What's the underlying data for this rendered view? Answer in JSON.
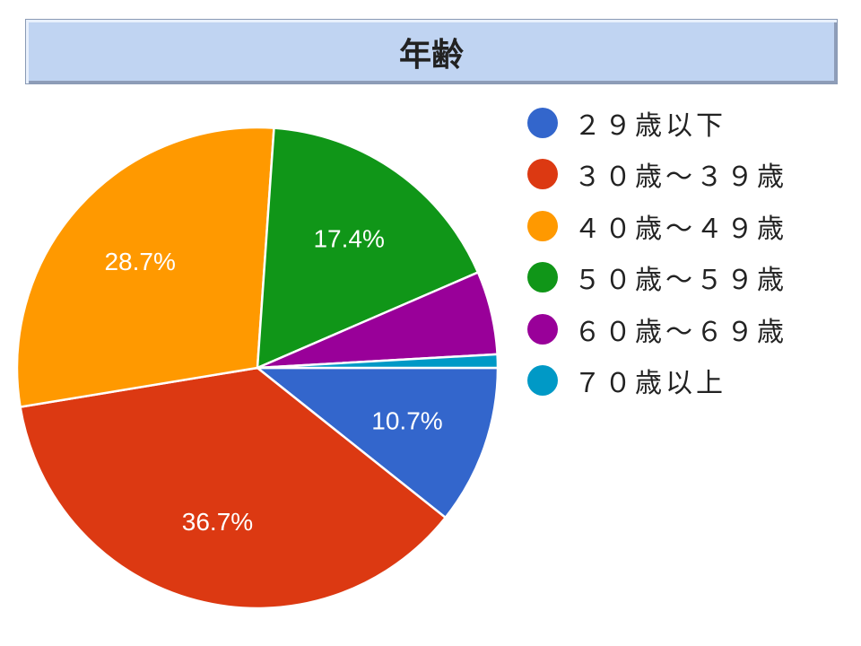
{
  "chart_data": {
    "type": "pie",
    "title": "年齢",
    "legend_position": "right",
    "start_angle": "3 o'clock, clockwise",
    "slices": [
      {
        "name": "２９歳以下",
        "value": 10.7,
        "label": "10.7%",
        "color": "#3366cc"
      },
      {
        "name": "３０歳～３９歳",
        "value": 36.7,
        "label": "36.7%",
        "color": "#dc3912"
      },
      {
        "name": "４０歳～４９歳",
        "value": 28.7,
        "label": "28.7%",
        "color": "#ff9900"
      },
      {
        "name": "５０歳～５９歳",
        "value": 17.4,
        "label": "17.4%",
        "color": "#109618"
      },
      {
        "name": "６０歳～６９歳",
        "value": 5.6,
        "label": "",
        "color": "#990099"
      },
      {
        "name": "７０歳以上",
        "value": 0.9,
        "label": "",
        "color": "#0099c6"
      }
    ]
  }
}
